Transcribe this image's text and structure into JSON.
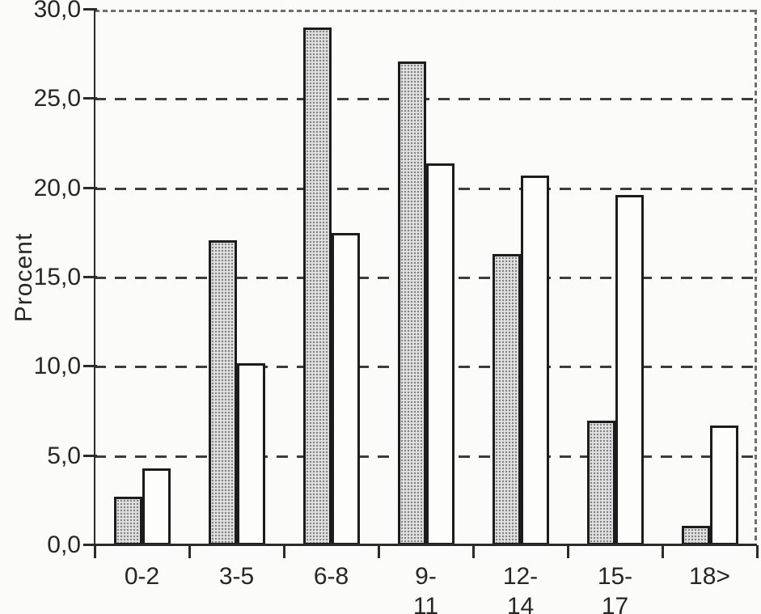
{
  "chart_data": {
    "type": "bar",
    "title": "",
    "xlabel": "",
    "ylabel": "Procent",
    "categories": [
      "0-2",
      "3-5",
      "6-8",
      "9-11",
      "12-14",
      "15-17",
      "18>"
    ],
    "category_label_lines": [
      [
        "0-2"
      ],
      [
        "3-5"
      ],
      [
        "6-8"
      ],
      [
        "9-",
        "11"
      ],
      [
        "12-",
        "14"
      ],
      [
        "15-",
        "17"
      ],
      [
        "18>"
      ]
    ],
    "series": [
      {
        "name": "shaded-bars",
        "fill": "stippled-gray",
        "values": [
          2.7,
          17.1,
          29.0,
          27.1,
          16.3,
          7.0,
          1.1
        ]
      },
      {
        "name": "white-bars",
        "fill": "white",
        "values": [
          4.3,
          10.2,
          17.5,
          21.4,
          20.7,
          19.6,
          6.7
        ]
      }
    ],
    "ylim": [
      0,
      30
    ],
    "ytick_step": 5,
    "ytick_labels": [
      "0,0",
      "5,0",
      "10,0",
      "15,0",
      "20,0",
      "25,0",
      "30,0"
    ],
    "grid": "horizontal-dashed",
    "legend": "none"
  },
  "colors": {
    "axis": "#2b2b2b",
    "grid": "#3c3c3c",
    "bar_border": "#1c1c1c",
    "shaded_fill": "#e0e0e0",
    "shaded_dots": "#7d7d7d",
    "white_fill": "#fdfdfc",
    "text": "#262626",
    "background": "#fbfbfa"
  }
}
